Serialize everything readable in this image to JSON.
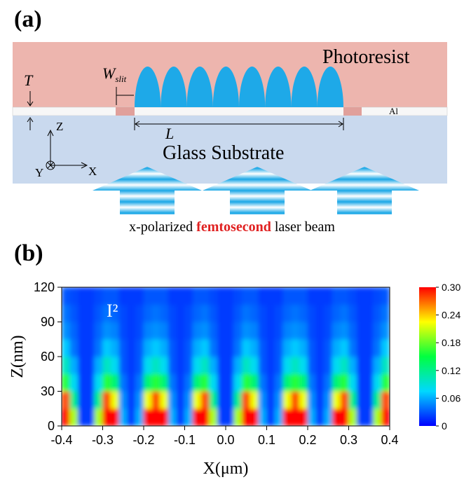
{
  "panel_a": {
    "label": "(a)",
    "photoresist": "Photoresist",
    "t_label": "T",
    "w_label": "W",
    "w_subscript": "slit",
    "al_label": "Al",
    "l_label": "L",
    "axis_z": "Z",
    "axis_y": "Y",
    "axis_x": "X",
    "substrate": "Glass Substrate",
    "caption": [
      "x-polarized ",
      "femtosecond",
      " laser beam"
    ]
  },
  "chart_data": {
    "type": "heatmap",
    "panel_label": "(b)",
    "annotation": "I²",
    "xlabel": "X(μm)",
    "ylabel": "Z(nm)",
    "xlim": [
      -0.4,
      0.4
    ],
    "ylim": [
      0,
      120
    ],
    "xticks": [
      -0.4,
      -0.3,
      -0.2,
      -0.1,
      {
        "value": 0,
        "label": "0.0"
      },
      0.1,
      0.2,
      0.3,
      0.4
    ],
    "yticks": [
      0,
      30,
      60,
      90,
      120
    ],
    "colormap": [
      "#0000ff",
      "#00d8ff",
      "#00ff40",
      "#ffff00",
      "#ff0000"
    ],
    "colorbar_lim": [
      0,
      0.3
    ],
    "colorbar_ticks": [
      0,
      0.06,
      0.12,
      0.18,
      0.24,
      {
        "value": 0.3,
        "label": "0.30"
      }
    ],
    "x_bins": [
      -0.4,
      -0.38,
      -0.36,
      -0.34,
      -0.32,
      -0.3,
      -0.28,
      -0.26,
      -0.24,
      -0.22,
      -0.2,
      -0.18,
      -0.16,
      -0.14,
      -0.12,
      -0.1,
      -0.08,
      -0.06,
      -0.04,
      -0.02,
      0,
      0.02,
      0.04,
      0.06,
      0.08,
      0.1,
      0.12,
      0.14,
      0.16,
      0.18,
      0.2,
      0.22,
      0.24,
      0.26,
      0.28,
      0.3,
      0.32,
      0.34,
      0.36,
      0.38,
      0.4
    ],
    "y_bins": [
      0,
      15,
      30,
      45,
      60,
      75,
      90,
      105,
      120
    ],
    "values": [
      [
        0.3,
        0.2,
        0.02,
        0.02,
        0.2,
        0.3,
        0.3,
        0.06,
        0.02,
        0.06,
        0.3,
        0.3,
        0.3,
        0.06,
        0.02,
        0.06,
        0.3,
        0.3,
        0.2,
        0.02,
        0.02,
        0.2,
        0.3,
        0.3,
        0.06,
        0.02,
        0.06,
        0.3,
        0.3,
        0.3,
        0.06,
        0.02,
        0.06,
        0.3,
        0.3,
        0.2,
        0.02,
        0.02,
        0.2,
        0.3
      ],
      [
        0.28,
        0.12,
        0.02,
        0.02,
        0.12,
        0.28,
        0.22,
        0.05,
        0.02,
        0.05,
        0.22,
        0.28,
        0.22,
        0.05,
        0.02,
        0.05,
        0.22,
        0.28,
        0.12,
        0.02,
        0.02,
        0.12,
        0.28,
        0.22,
        0.05,
        0.02,
        0.05,
        0.22,
        0.28,
        0.22,
        0.05,
        0.02,
        0.05,
        0.22,
        0.28,
        0.12,
        0.02,
        0.02,
        0.12,
        0.28
      ],
      [
        0.16,
        0.08,
        0.02,
        0.02,
        0.08,
        0.16,
        0.13,
        0.04,
        0.02,
        0.04,
        0.13,
        0.16,
        0.13,
        0.04,
        0.02,
        0.04,
        0.13,
        0.16,
        0.08,
        0.02,
        0.02,
        0.08,
        0.16,
        0.13,
        0.04,
        0.02,
        0.04,
        0.13,
        0.16,
        0.13,
        0.04,
        0.02,
        0.04,
        0.13,
        0.16,
        0.08,
        0.02,
        0.02,
        0.08,
        0.16
      ],
      [
        0.1,
        0.06,
        0.02,
        0.02,
        0.06,
        0.1,
        0.08,
        0.03,
        0.02,
        0.03,
        0.08,
        0.1,
        0.08,
        0.03,
        0.02,
        0.03,
        0.08,
        0.1,
        0.06,
        0.02,
        0.02,
        0.06,
        0.1,
        0.08,
        0.03,
        0.02,
        0.03,
        0.08,
        0.1,
        0.08,
        0.03,
        0.02,
        0.03,
        0.08,
        0.1,
        0.06,
        0.02,
        0.02,
        0.06,
        0.1
      ],
      [
        0.07,
        0.04,
        0.02,
        0.02,
        0.04,
        0.07,
        0.06,
        0.03,
        0.02,
        0.03,
        0.06,
        0.07,
        0.06,
        0.03,
        0.02,
        0.03,
        0.06,
        0.07,
        0.04,
        0.02,
        0.02,
        0.04,
        0.07,
        0.06,
        0.03,
        0.02,
        0.03,
        0.06,
        0.07,
        0.06,
        0.03,
        0.02,
        0.03,
        0.06,
        0.07,
        0.04,
        0.02,
        0.02,
        0.04,
        0.07
      ],
      [
        0.05,
        0.035,
        0.02,
        0.02,
        0.035,
        0.05,
        0.045,
        0.025,
        0.02,
        0.025,
        0.045,
        0.05,
        0.045,
        0.025,
        0.02,
        0.025,
        0.045,
        0.05,
        0.035,
        0.02,
        0.02,
        0.035,
        0.05,
        0.045,
        0.025,
        0.02,
        0.025,
        0.045,
        0.05,
        0.045,
        0.025,
        0.02,
        0.025,
        0.045,
        0.05,
        0.035,
        0.02,
        0.02,
        0.035,
        0.05
      ],
      [
        0.04,
        0.03,
        0.02,
        0.02,
        0.03,
        0.04,
        0.035,
        0.025,
        0.02,
        0.025,
        0.035,
        0.04,
        0.035,
        0.025,
        0.02,
        0.025,
        0.035,
        0.04,
        0.03,
        0.02,
        0.02,
        0.03,
        0.04,
        0.035,
        0.025,
        0.02,
        0.025,
        0.035,
        0.04,
        0.035,
        0.025,
        0.02,
        0.025,
        0.035,
        0.04,
        0.03,
        0.02,
        0.02,
        0.03,
        0.04
      ],
      [
        0.03,
        0.025,
        0.02,
        0.02,
        0.025,
        0.03,
        0.03,
        0.02,
        0.02,
        0.02,
        0.03,
        0.03,
        0.03,
        0.02,
        0.02,
        0.02,
        0.03,
        0.03,
        0.025,
        0.02,
        0.02,
        0.025,
        0.03,
        0.03,
        0.02,
        0.02,
        0.02,
        0.03,
        0.03,
        0.03,
        0.02,
        0.02,
        0.02,
        0.03,
        0.03,
        0.025,
        0.02,
        0.02,
        0.025,
        0.03
      ]
    ]
  }
}
